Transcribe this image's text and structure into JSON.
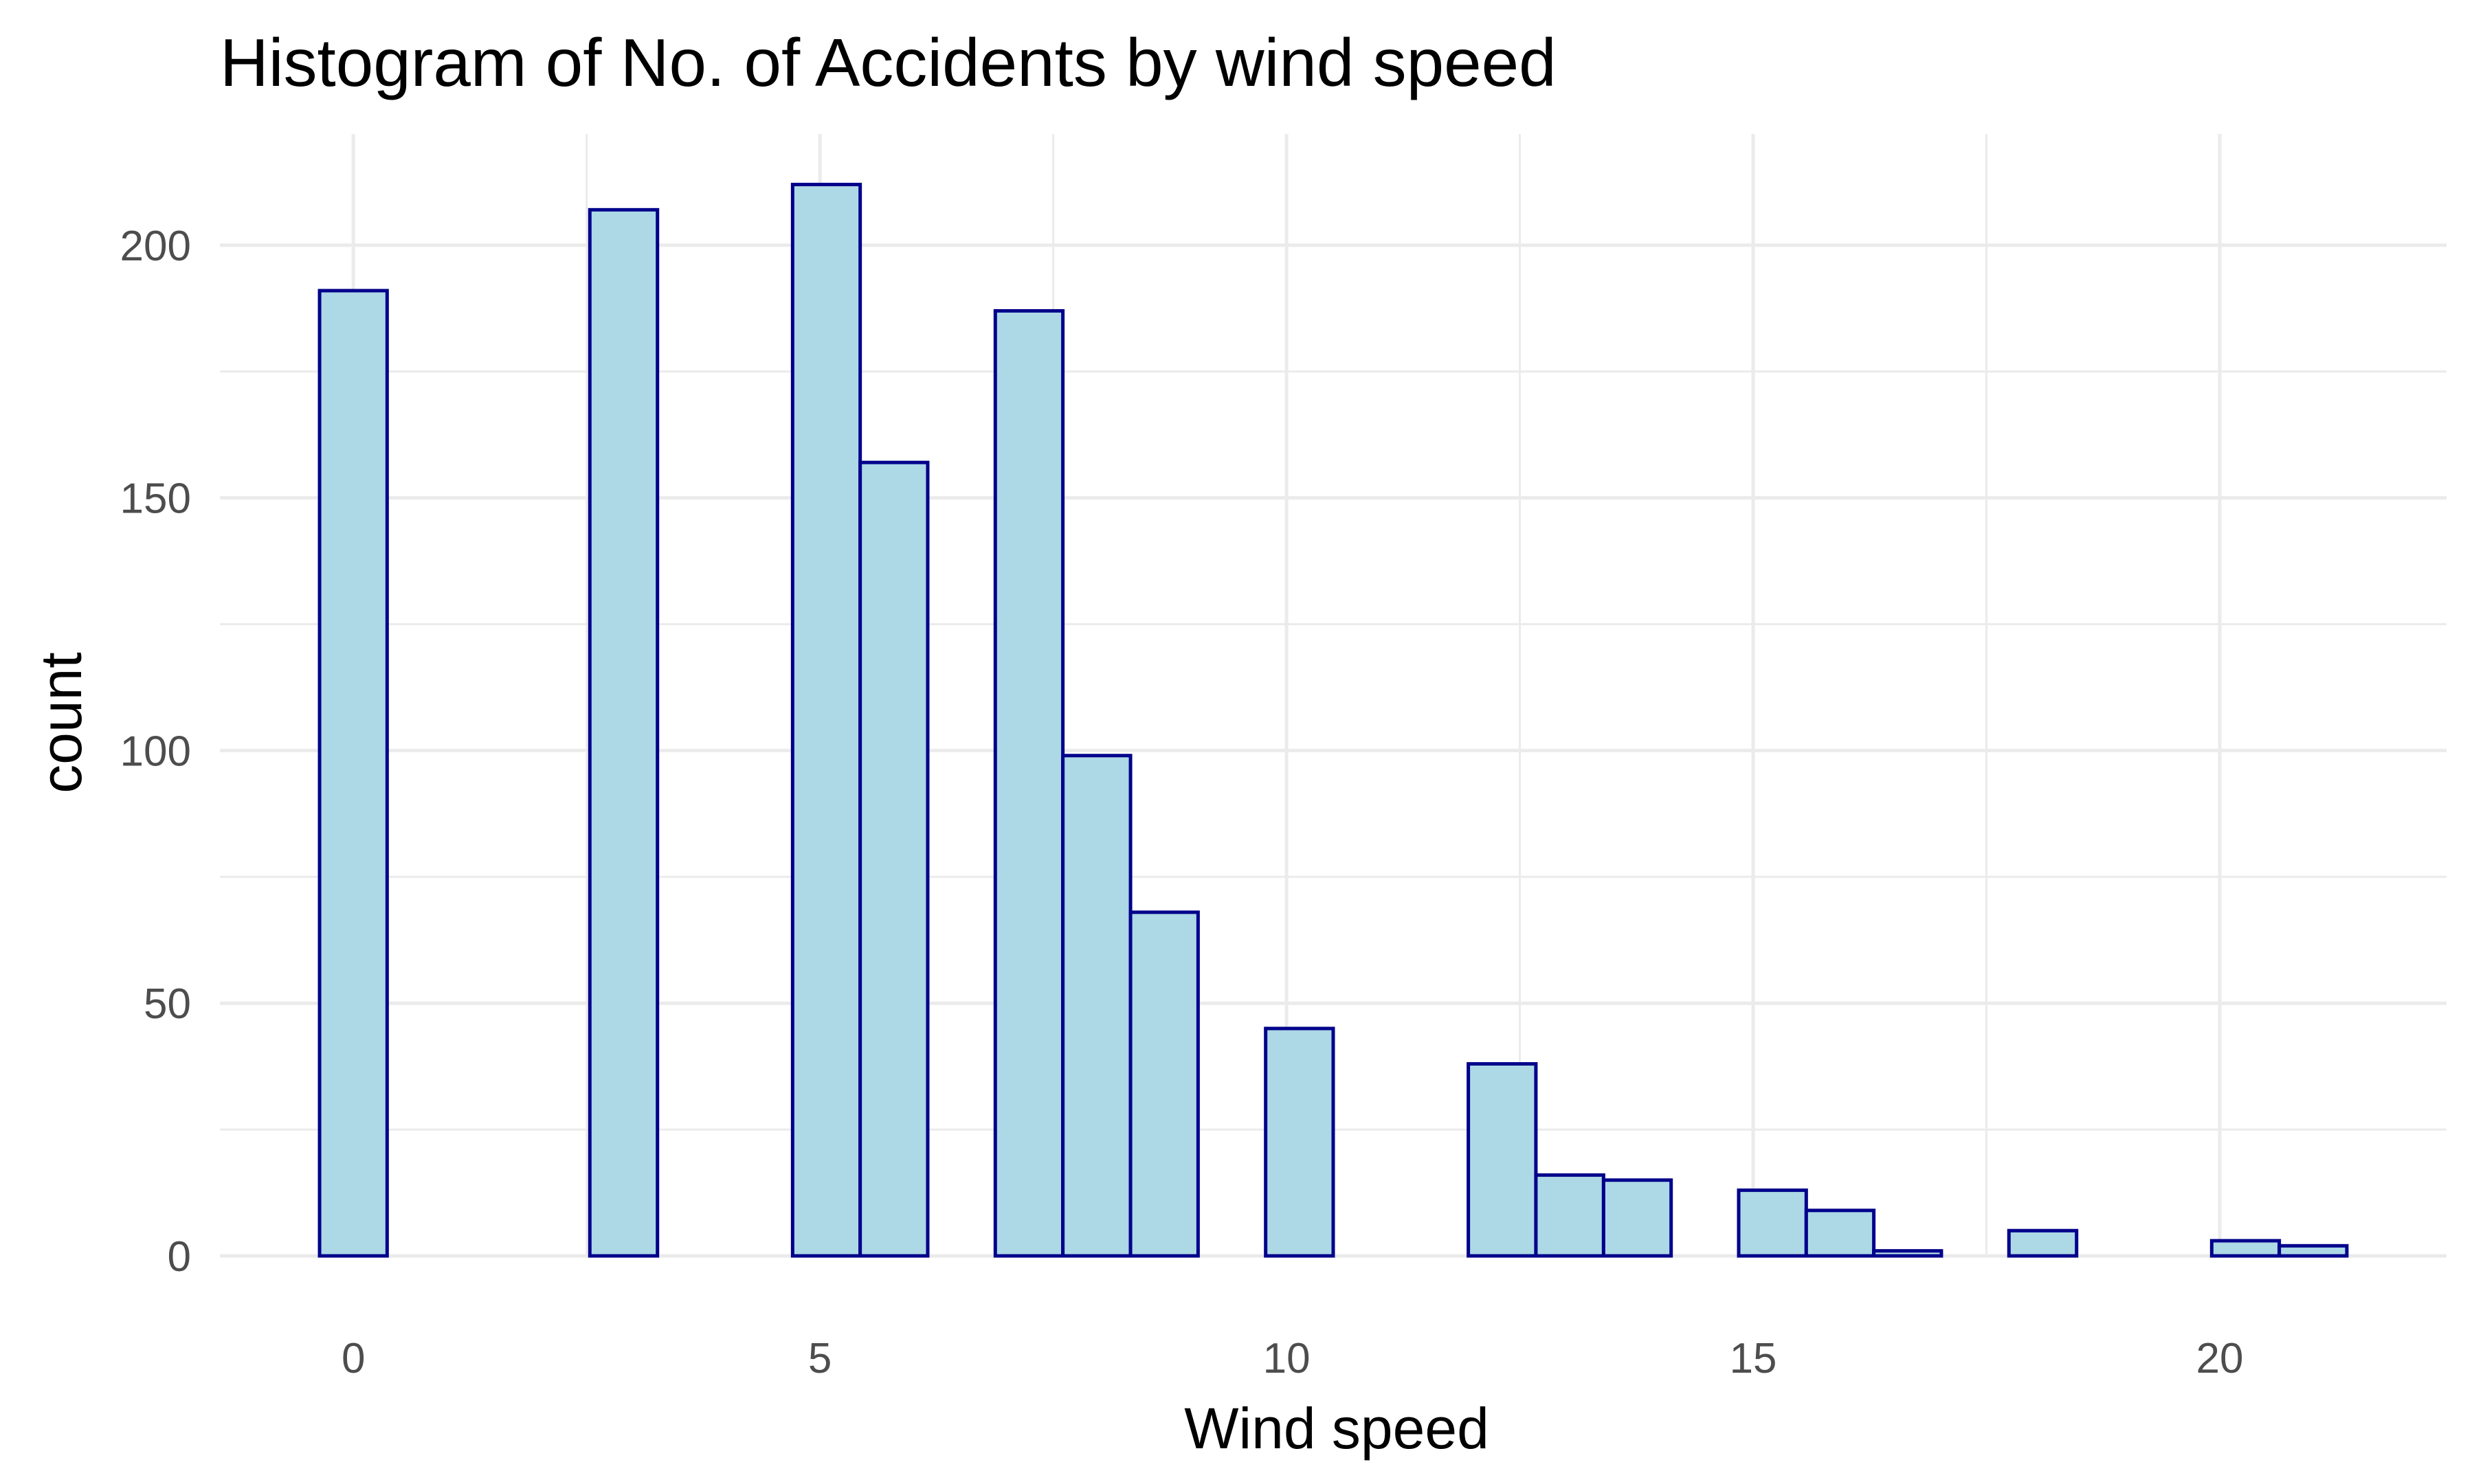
{
  "chart_data": {
    "type": "bar",
    "title": "Histogram of No. of Accidents by wind speed",
    "xlabel": "Wind speed",
    "ylabel": "count",
    "bin_width": 0.7241,
    "bins": [
      {
        "x0": -0.362,
        "x1": 0.362,
        "count": 191
      },
      {
        "x0": 0.362,
        "x1": 1.086,
        "count": 0
      },
      {
        "x0": 1.086,
        "x1": 1.81,
        "count": 0
      },
      {
        "x0": 1.81,
        "x1": 2.534,
        "count": 0
      },
      {
        "x0": 2.534,
        "x1": 3.259,
        "count": 207
      },
      {
        "x0": 3.259,
        "x1": 3.983,
        "count": 0
      },
      {
        "x0": 3.983,
        "x1": 4.707,
        "count": 0
      },
      {
        "x0": 4.707,
        "x1": 5.431,
        "count": 212
      },
      {
        "x0": 5.431,
        "x1": 6.155,
        "count": 157
      },
      {
        "x0": 6.155,
        "x1": 6.879,
        "count": 0
      },
      {
        "x0": 6.879,
        "x1": 7.603,
        "count": 187
      },
      {
        "x0": 7.603,
        "x1": 8.328,
        "count": 99
      },
      {
        "x0": 8.328,
        "x1": 9.052,
        "count": 68
      },
      {
        "x0": 9.052,
        "x1": 9.776,
        "count": 0
      },
      {
        "x0": 9.776,
        "x1": 10.5,
        "count": 45
      },
      {
        "x0": 10.5,
        "x1": 11.224,
        "count": 0
      },
      {
        "x0": 11.224,
        "x1": 11.948,
        "count": 0
      },
      {
        "x0": 11.948,
        "x1": 12.672,
        "count": 38
      },
      {
        "x0": 12.672,
        "x1": 13.397,
        "count": 16
      },
      {
        "x0": 13.397,
        "x1": 14.121,
        "count": 15
      },
      {
        "x0": 14.121,
        "x1": 14.845,
        "count": 0
      },
      {
        "x0": 14.845,
        "x1": 15.569,
        "count": 13
      },
      {
        "x0": 15.569,
        "x1": 16.293,
        "count": 9
      },
      {
        "x0": 16.293,
        "x1": 17.017,
        "count": 1
      },
      {
        "x0": 17.017,
        "x1": 17.741,
        "count": 0
      },
      {
        "x0": 17.741,
        "x1": 18.466,
        "count": 5
      },
      {
        "x0": 18.466,
        "x1": 19.19,
        "count": 0
      },
      {
        "x0": 19.19,
        "x1": 19.914,
        "count": 0
      },
      {
        "x0": 19.914,
        "x1": 20.638,
        "count": 3
      },
      {
        "x0": 20.638,
        "x1": 21.362,
        "count": 2
      }
    ],
    "xlim": [
      -1.43,
      22.43
    ],
    "ylim": [
      0,
      222
    ],
    "x_ticks": [
      0,
      5,
      10,
      15,
      20
    ],
    "x_tick_labels": [
      "0",
      "5",
      "10",
      "15",
      "20"
    ],
    "x_minor_ticks": [
      2.5,
      7.5,
      12.5,
      17.5
    ],
    "y_ticks": [
      0,
      50,
      100,
      150,
      200
    ],
    "y_tick_labels": [
      "0",
      "50",
      "100",
      "150",
      "200"
    ],
    "y_minor_ticks": [
      25,
      75,
      125,
      175
    ],
    "grid": true,
    "legend": "none",
    "colors": {
      "bar_fill": "#add8e6",
      "bar_outline": "#00008b",
      "grid": "#ebebeb",
      "tick_text": "#4d4d4d",
      "title_text": "#000000"
    }
  }
}
